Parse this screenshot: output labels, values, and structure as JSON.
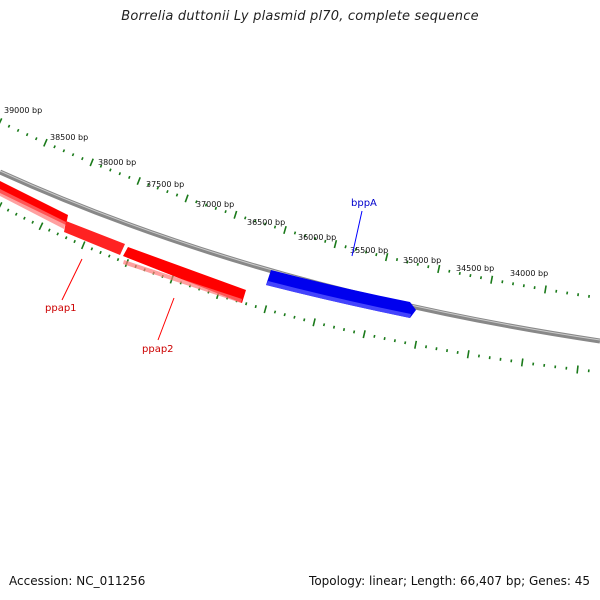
{
  "title": "Borrelia duttonii Ly plasmid pl70, complete sequence",
  "footer": {
    "accession": "Accession: NC_011256",
    "summary": "Topology: linear; Length: 66,407 bp; Genes: 45"
  },
  "colors": {
    "backbone": "#888888",
    "ticks": "#1a7a1a",
    "forward_gene": "#ff0000",
    "reverse_gene": "#0000ff"
  },
  "scale_labels": [
    "39000 bp",
    "38500 bp",
    "38000 bp",
    "37500 bp",
    "37000 bp",
    "36500 bp",
    "36000 bp",
    "35500 bp",
    "35000 bp",
    "34500 bp",
    "34000 bp"
  ],
  "genes": [
    {
      "name": "ppap1",
      "strand": "-",
      "color": "#ff0000"
    },
    {
      "name": "ppap2",
      "strand": "-",
      "color": "#ff0000"
    },
    {
      "name": "bppA",
      "strand": "+",
      "color": "#0000ff"
    }
  ]
}
